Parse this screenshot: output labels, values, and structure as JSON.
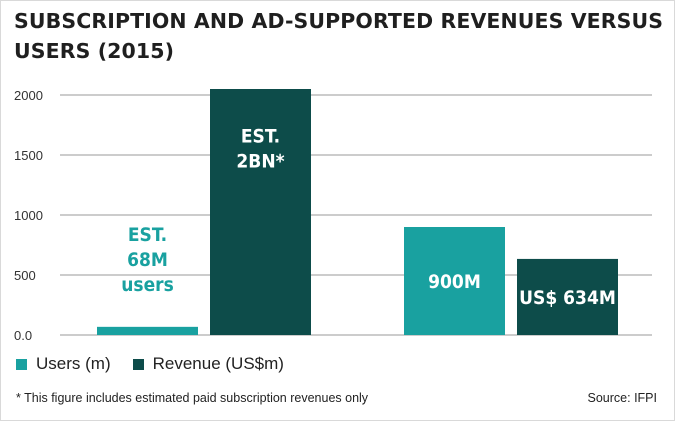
{
  "chart_data": {
    "type": "bar",
    "title": "SUBSCRIPTION AND AD-SUPPORTED REVENUES VERSUS USERS (2015)",
    "groups": [
      "",
      ""
    ],
    "series": [
      {
        "name": "Users (m)",
        "color": "#19a1a0",
        "values": [
          68,
          900
        ],
        "labels": [
          [
            "EST.",
            "68M",
            "users"
          ],
          [
            "900M"
          ]
        ]
      },
      {
        "name": "Revenue (US$m)",
        "color": "#0d4c4a",
        "values": [
          2050,
          634
        ],
        "labels": [
          [
            "EST.",
            "2BN*"
          ],
          [
            "US$ 634M"
          ]
        ]
      }
    ],
    "y_ticks": [
      "0.0",
      "500",
      "1000",
      "1500",
      "2000"
    ],
    "y_tick_values": [
      0,
      500,
      1000,
      1500,
      2000
    ],
    "ylim": [
      0,
      2000
    ],
    "grid": true,
    "legend_position": "bottom-left",
    "xlabel": "",
    "ylabel": ""
  },
  "footnote": "* This figure includes estimated paid subscription revenues only",
  "source": "Source: IFPI"
}
